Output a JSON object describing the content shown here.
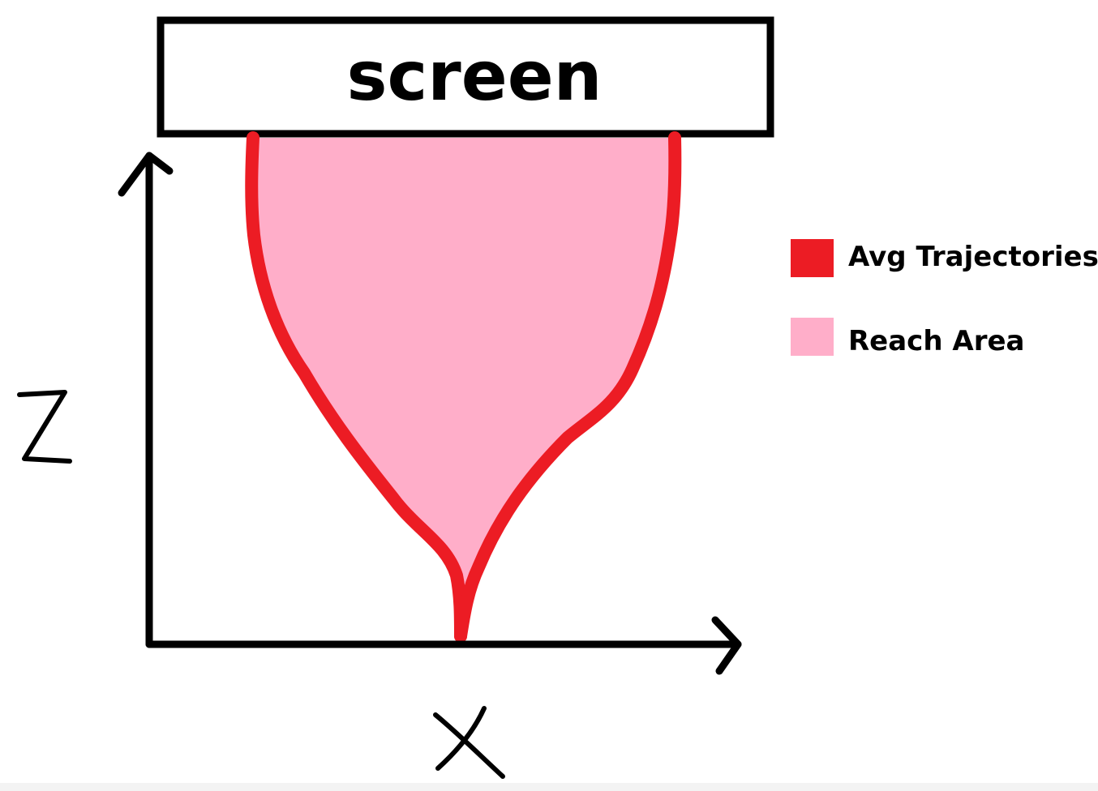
{
  "screen": {
    "label": "screen"
  },
  "axes": {
    "x_label": "X",
    "z_label": "Z"
  },
  "legend": {
    "items": [
      {
        "label": "Avg Trajectories",
        "color": "#ec1c24"
      },
      {
        "label": "Reach Area",
        "color": "#ffaec9"
      }
    ]
  },
  "colors": {
    "trajectory": "#ec1c24",
    "reach_area": "#ffaec9",
    "ink": "#000000"
  }
}
